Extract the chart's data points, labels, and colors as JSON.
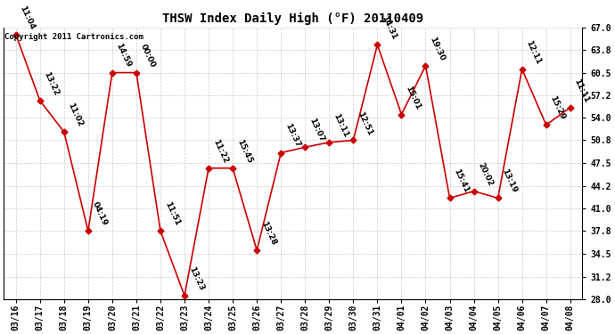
{
  "title": "THSW Index Daily High (°F) 20110409",
  "copyright": "Copyright 2011 Cartronics.com",
  "dates": [
    "03/16",
    "03/17",
    "03/18",
    "03/19",
    "03/20",
    "03/21",
    "03/22",
    "03/23",
    "03/24",
    "03/25",
    "03/26",
    "03/27",
    "03/28",
    "03/29",
    "03/30",
    "03/31",
    "04/01",
    "04/02",
    "04/03",
    "04/04",
    "04/05",
    "04/06",
    "04/07",
    "04/08"
  ],
  "values": [
    66.0,
    56.5,
    52.0,
    37.8,
    60.5,
    60.5,
    37.8,
    28.5,
    46.8,
    46.8,
    35.0,
    49.0,
    49.8,
    50.5,
    50.8,
    64.5,
    54.5,
    61.5,
    42.5,
    43.5,
    42.5,
    61.0,
    53.0,
    55.5
  ],
  "time_labels": [
    "11:04",
    "13:22",
    "11:02",
    "04:19",
    "14:59",
    "00:00",
    "11:51",
    "13:23",
    "11:22",
    "15:45",
    "13:28",
    "13:37",
    "13:07",
    "13:11",
    "12:51",
    "14:31",
    "15:01",
    "19:30",
    "15:41",
    "20:02",
    "13:19",
    "12:11",
    "15:29",
    "11:11"
  ],
  "ylim_min": 28.0,
  "ylim_max": 67.0,
  "yticks": [
    28.0,
    31.2,
    34.5,
    37.8,
    41.0,
    44.2,
    47.5,
    50.8,
    54.0,
    57.2,
    60.5,
    63.8,
    67.0
  ],
  "line_color": "#cc0000",
  "marker_color": "#cc0000",
  "bg_color": "#ffffff",
  "grid_color": "#cccccc",
  "title_fontsize": 10,
  "tick_label_fontsize": 7,
  "annot_fontsize": 6.5,
  "copyright_fontsize": 6.5,
  "figwidth": 6.9,
  "figheight": 3.75,
  "dpi": 100
}
